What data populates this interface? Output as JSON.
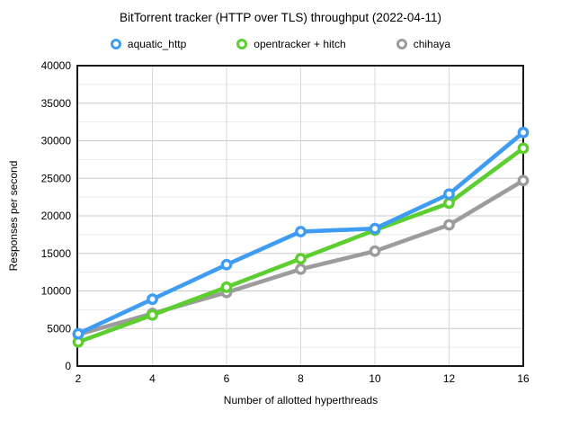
{
  "title": "BitTorrent tracker (HTTP over TLS) throughput (2022-04-11)",
  "legend": [
    {
      "label": "aquatic_http",
      "color": "#3E9DF3"
    },
    {
      "label": "opentracker + hitch",
      "color": "#5CCE30"
    },
    {
      "label": "chihaya",
      "color": "#9C9C9C"
    }
  ],
  "chart_data": {
    "type": "line",
    "title": "BitTorrent tracker (HTTP over TLS) throughput (2022-04-11)",
    "xlabel": "Number of allotted hyperthreads",
    "ylabel": "Responses per second",
    "categories": [
      2,
      4,
      6,
      8,
      10,
      12,
      16
    ],
    "x_tick_labels": [
      "2",
      "4",
      "6",
      "8",
      "10",
      "12",
      "16"
    ],
    "y_tick_labels": [
      "0",
      "5000",
      "10000",
      "15000",
      "20000",
      "25000",
      "30000",
      "35000",
      "40000"
    ],
    "ylim": [
      0,
      40000
    ],
    "y_major_step": 5000,
    "y_minor_step": 2500,
    "grid": true,
    "legend_position": "top",
    "marker": "ring",
    "series": [
      {
        "name": "aquatic_http",
        "color": "#3E9DF3",
        "values": [
          4300,
          8900,
          13500,
          17900,
          18300,
          22900,
          31100
        ]
      },
      {
        "name": "opentracker + hitch",
        "color": "#5CCE30",
        "values": [
          3200,
          6800,
          10500,
          14300,
          18100,
          21700,
          29000
        ]
      },
      {
        "name": "chihaya",
        "color": "#9C9C9C",
        "values": [
          4200,
          7000,
          9800,
          12900,
          15300,
          18800,
          24700
        ]
      }
    ]
  },
  "colors": {
    "background": "#ffffff",
    "axis_border": "#1a1a1a",
    "grid_major": "#c9c9c9",
    "grid_minor": "#eaeaea",
    "grid_vertical": "#d9d9d9",
    "text": "#000000"
  }
}
